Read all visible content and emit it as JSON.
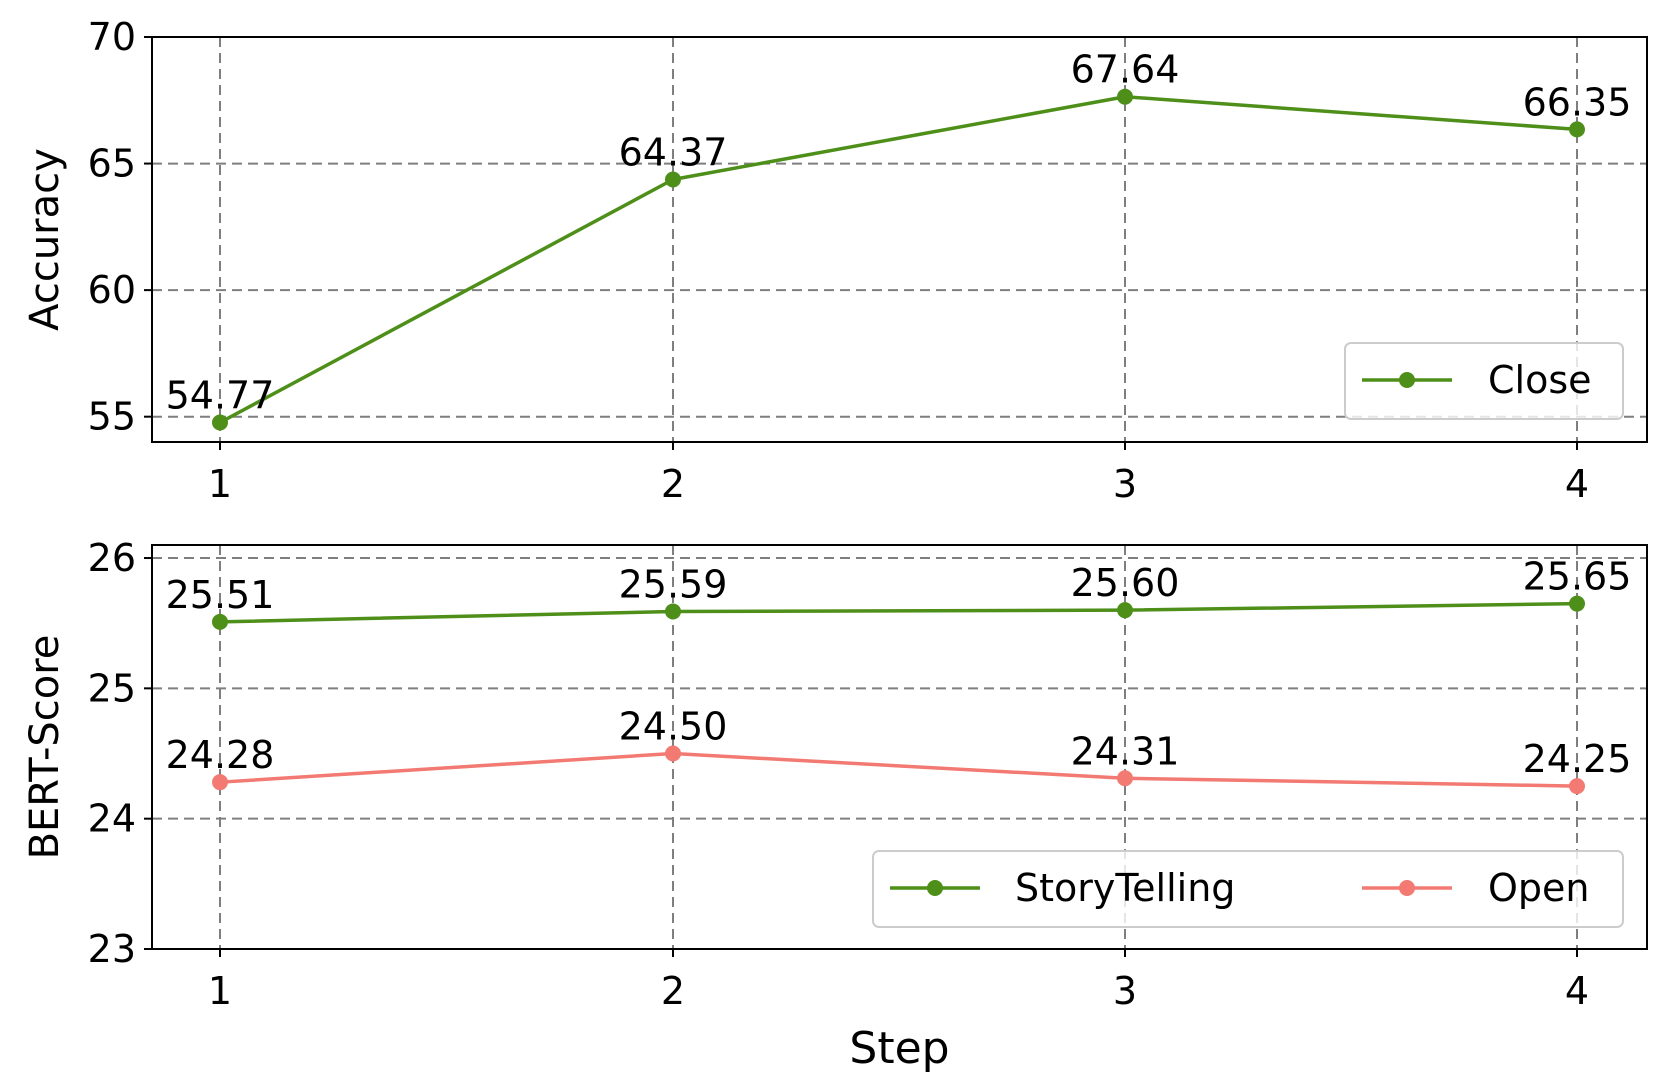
{
  "chart_data": [
    {
      "type": "line",
      "x": [
        1,
        2,
        3,
        4
      ],
      "ylabel": "Accuracy",
      "xlabel": "",
      "ylim": [
        54,
        70
      ],
      "yticks": [
        55,
        60,
        65,
        70
      ],
      "grid": true,
      "legend_position": "bottom-right",
      "series": [
        {
          "name": "Close",
          "color": "#4e8f1a",
          "values": [
            54.77,
            64.37,
            67.64,
            66.35
          ],
          "labels": [
            "54.77",
            "64.37",
            "67.64",
            "66.35"
          ]
        }
      ]
    },
    {
      "type": "line",
      "x": [
        1,
        2,
        3,
        4
      ],
      "ylabel": "BERT-Score",
      "xlabel": "Step",
      "ylim": [
        23,
        26.1
      ],
      "yticks": [
        23,
        24,
        25,
        26
      ],
      "grid": true,
      "legend_position": "bottom-right",
      "series": [
        {
          "name": "StoryTelling",
          "color": "#4e8f1a",
          "values": [
            25.51,
            25.59,
            25.6,
            25.65
          ],
          "labels": [
            "25.51",
            "25.59",
            "25.60",
            "25.65"
          ]
        },
        {
          "name": "Open",
          "color": "#f27a72",
          "values": [
            24.28,
            24.5,
            24.31,
            24.25
          ],
          "labels": [
            "24.28",
            "24.50",
            "24.31",
            "24.25"
          ]
        }
      ]
    }
  ]
}
